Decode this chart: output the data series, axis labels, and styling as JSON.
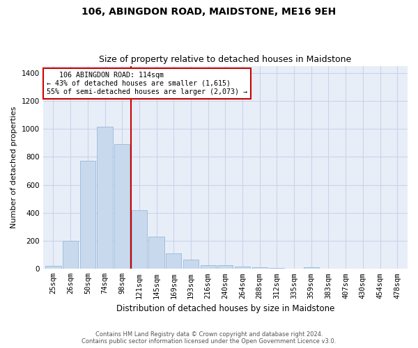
{
  "title": "106, ABINGDON ROAD, MAIDSTONE, ME16 9EH",
  "subtitle": "Size of property relative to detached houses in Maidstone",
  "xlabel": "Distribution of detached houses by size in Maidstone",
  "ylabel": "Number of detached properties",
  "categories": [
    "25sqm",
    "26sqm",
    "50sqm",
    "74sqm",
    "98sqm",
    "121sqm",
    "145sqm",
    "169sqm",
    "193sqm",
    "216sqm",
    "240sqm",
    "264sqm",
    "288sqm",
    "312sqm",
    "335sqm",
    "359sqm",
    "383sqm",
    "407sqm",
    "430sqm",
    "454sqm",
    "478sqm"
  ],
  "values": [
    20,
    200,
    770,
    1015,
    890,
    420,
    230,
    110,
    65,
    25,
    25,
    15,
    10,
    5,
    0,
    10,
    0,
    0,
    0,
    0,
    0
  ],
  "bar_color": "#c8d9ee",
  "bar_edge_color": "#9ab8d8",
  "grid_color": "#c8d4e8",
  "bg_color": "#e8eef8",
  "vline_color": "#cc0000",
  "annotation_line1": "   106 ABINGDON ROAD: 114sqm",
  "annotation_line2": "← 43% of detached houses are smaller (1,615)",
  "annotation_line3": "55% of semi-detached houses are larger (2,073) →",
  "annotation_box_color": "#cc0000",
  "annotation_bg": "white",
  "footer_line1": "Contains HM Land Registry data © Crown copyright and database right 2024.",
  "footer_line2": "Contains public sector information licensed under the Open Government Licence v3.0.",
  "ylim": [
    0,
    1450
  ],
  "yticks": [
    0,
    200,
    400,
    600,
    800,
    1000,
    1200,
    1400
  ],
  "title_fontsize": 10,
  "subtitle_fontsize": 9,
  "xlabel_fontsize": 8.5,
  "ylabel_fontsize": 8,
  "tick_fontsize": 7.5,
  "footer_fontsize": 6
}
